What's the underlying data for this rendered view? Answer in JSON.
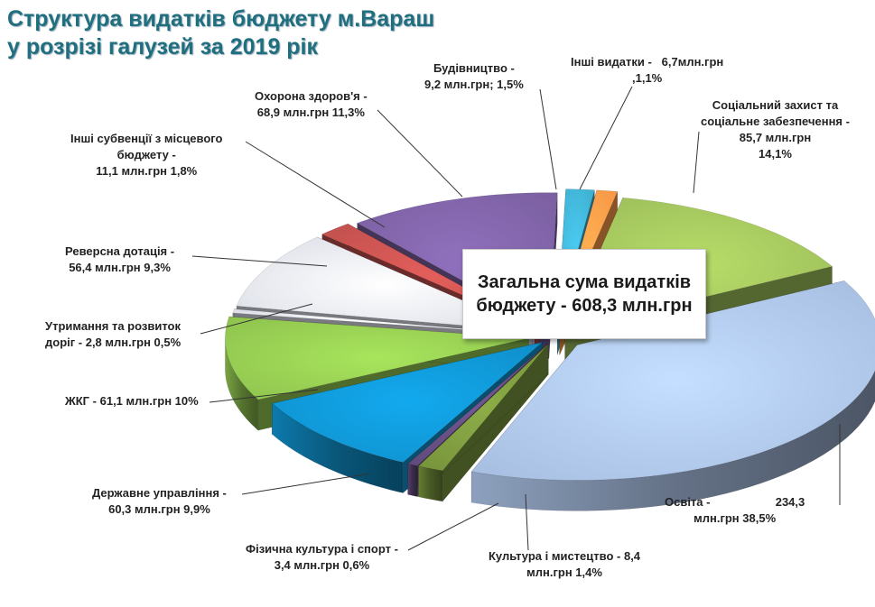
{
  "chart_data": {
    "type": "pie",
    "title": [
      "Структура видатків бюджету м.Вараш",
      "у розрізі галузей за 2019 рік"
    ],
    "total": [
      "Загальна  сума видатків",
      "бюджету - 608,3 млн.грн"
    ],
    "slices": [
      {
        "name": "Соціальний захист та соціальне забезпечення",
        "value": 85.7,
        "percent": 14.1,
        "color": "#9bbb59",
        "label": [
          "Соціальний захист та",
          "соціальне забезпечення -",
          "85,7 млн.грн",
          "14,1%"
        ]
      },
      {
        "name": "Освіта",
        "value": 234.3,
        "percent": 38.5,
        "color": "#a6bde0",
        "label": [
          "Освіта -                    234,3",
          "млн.грн 38,5%"
        ]
      },
      {
        "name": "Культура і мистецтво",
        "value": 8.4,
        "percent": 1.4,
        "color": "#77933c",
        "label": [
          "Культура і мистецтво -  8,4",
          "млн.грн 1,4%"
        ]
      },
      {
        "name": "Фізична культура і спорт",
        "value": 3.4,
        "percent": 0.6,
        "color": "#604a7b",
        "label": [
          "Фізична культура і спорт -",
          "3,4 млн.грн 0,6%"
        ]
      },
      {
        "name": "Державне управління",
        "value": 60.3,
        "percent": 9.9,
        "color": "#0f8fca",
        "label": [
          "Державне управління -",
          "60,3 млн.грн  9,9%"
        ]
      },
      {
        "name": "ЖКГ",
        "value": 61.1,
        "percent": 10,
        "color": "#8ec24e",
        "label": [
          "ЖКГ - 61,1 млн.грн 10%"
        ]
      },
      {
        "name": "Утримання та розвиток доріг",
        "value": 2.8,
        "percent": 0.5,
        "color": "#dcdce8",
        "label": [
          "Утримання та розвиток",
          "доріг -  2,8 млн.грн 0,5%"
        ]
      },
      {
        "name": "Реверсна дотація",
        "value": 56.4,
        "percent": 9.3,
        "color": "#d9dce6",
        "label": [
          "Реверсна дотація -",
          "56,4 млн.грн  9,3%"
        ]
      },
      {
        "name": "Інші субвенції з місцевого бюджету",
        "value": 11.1,
        "percent": 1.8,
        "color": "#c0504d",
        "label": [
          "Інші субвенції з місцевого",
          "бюджету -",
          "11,1 млн.грн 1,8%"
        ]
      },
      {
        "name": "Охорона здоров'я",
        "value": 68.9,
        "percent": 11.3,
        "color": "#7a5fa0",
        "label": [
          "Охорона здоров'я -",
          "68,9 млн.грн  11,3%"
        ]
      },
      {
        "name": "Будівництво",
        "value": 9.2,
        "percent": 1.5,
        "color": "#3faecf",
        "label": [
          "Будівництво -",
          "9,2 млн.грн;  1,5%"
        ]
      },
      {
        "name": "Інші видатки",
        "value": 6.7,
        "percent": 1.1,
        "color": "#f79646",
        "label": [
          "Інші видатки -   6,7млн.грн",
          ",1,1%"
        ]
      }
    ]
  }
}
